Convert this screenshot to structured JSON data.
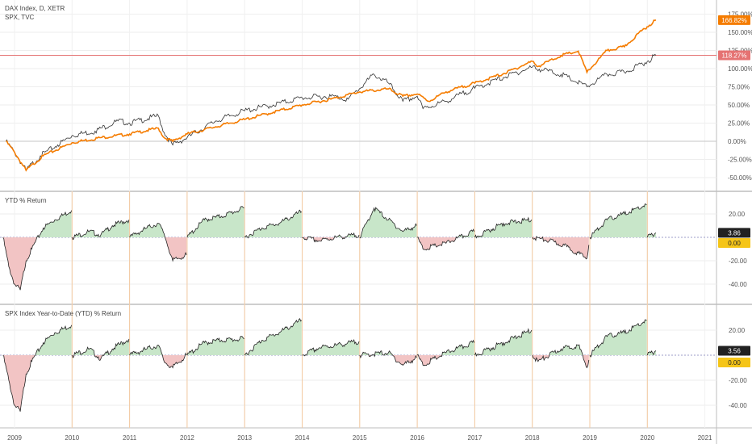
{
  "main_legend": [
    "DAX Index, D, XETR",
    "SPX, TVC"
  ],
  "main_axis": {
    "ticks": [
      "175.00%",
      "150.00%",
      "125.00%",
      "100.00%",
      "75.00%",
      "50.00%",
      "25.00%",
      "0.00%",
      "-25.00%",
      "-50.00%"
    ]
  },
  "price_tags": {
    "spx": "166.82%",
    "dax": "118.27%"
  },
  "ytd1": {
    "title": "YTD % Return",
    "tag_value": "3.86",
    "zero_tag": "0.00",
    "ticks": [
      "20.00",
      "-20.00",
      "-40.00"
    ]
  },
  "ytd2": {
    "title": "SPX Index Year-to-Date (YTD) % Return",
    "tag_value": "3.56",
    "zero_tag": "0.00",
    "ticks": [
      "20.00",
      "-20.00",
      "-40.00"
    ]
  },
  "x_axis": {
    "labels": [
      "2009",
      "2010",
      "2011",
      "2012",
      "2013",
      "2014",
      "2015",
      "2016",
      "2017",
      "2018",
      "2019",
      "2020",
      "2021"
    ]
  },
  "colors": {
    "spx": "#f57c00",
    "dax": "#333333",
    "ref_line": "#e57373",
    "pos_fill": "#c8e6c9",
    "neg_fill": "#f2c4c4",
    "zero_tag": "#f5c518"
  },
  "chart_data": [
    {
      "type": "line",
      "title": "DAX Index, D, XETR",
      "ylabel": "%",
      "ylim": [
        -60,
        180
      ],
      "series": [
        {
          "name": "DAX Index, D, XETR",
          "x": [
            2008.85,
            2009.0,
            2009.2,
            2009.45,
            2009.75,
            2010.0,
            2010.4,
            2010.8,
            2011.0,
            2011.5,
            2011.6,
            2011.75,
            2012.0,
            2012.5,
            2013.0,
            2013.5,
            2014.0,
            2014.5,
            2014.8,
            2015.25,
            2015.5,
            2015.75,
            2016.0,
            2016.1,
            2016.5,
            2017.0,
            2017.5,
            2018.0,
            2018.5,
            2018.95,
            2019.3,
            2019.6,
            2020.0,
            2020.15
          ],
          "values": [
            0,
            -15,
            -40,
            -20,
            -5,
            8,
            14,
            28,
            25,
            35,
            12,
            -5,
            5,
            28,
            42,
            50,
            60,
            62,
            58,
            92,
            80,
            55,
            62,
            45,
            55,
            73,
            88,
            102,
            92,
            75,
            92,
            95,
            110,
            118.27
          ]
        },
        {
          "name": "SPX, TVC",
          "x": [
            2008.85,
            2009.0,
            2009.2,
            2009.5,
            2010.0,
            2010.5,
            2011.0,
            2011.5,
            2011.6,
            2011.75,
            2012.0,
            2012.5,
            2013.0,
            2013.5,
            2014.0,
            2014.5,
            2015.0,
            2015.5,
            2015.75,
            2016.0,
            2016.2,
            2016.5,
            2017.0,
            2017.5,
            2018.0,
            2018.1,
            2018.5,
            2018.8,
            2018.95,
            2019.3,
            2019.6,
            2019.9,
            2020.15
          ],
          "values": [
            0,
            -15,
            -40,
            -20,
            -2,
            5,
            10,
            18,
            5,
            0,
            10,
            20,
            30,
            40,
            50,
            58,
            68,
            72,
            62,
            65,
            55,
            68,
            80,
            93,
            110,
            103,
            118,
            124,
            95,
            125,
            130,
            152,
            166.82
          ]
        }
      ]
    },
    {
      "type": "area",
      "title": "YTD % Return",
      "ylim": [
        -50,
        35
      ],
      "series": [
        {
          "name": "YTD % Return",
          "x": [
            2008.8,
            2008.9,
            2009.0,
            2009.1,
            2009.2,
            2009.3,
            2009.5,
            2009.7,
            2009.99,
            2010.0,
            2010.3,
            2010.5,
            2010.7,
            2010.99,
            2011.0,
            2011.3,
            2011.5,
            2011.6,
            2011.75,
            2011.99,
            2012.0,
            2012.3,
            2012.6,
            2012.99,
            2013.0,
            2013.3,
            2013.6,
            2013.99,
            2014.0,
            2014.3,
            2014.6,
            2014.99,
            2015.0,
            2015.25,
            2015.5,
            2015.75,
            2015.99,
            2016.0,
            2016.1,
            2016.5,
            2016.99,
            2017.0,
            2017.5,
            2017.99,
            2018.0,
            2018.3,
            2018.6,
            2018.95,
            2019.0,
            2019.3,
            2019.6,
            2019.99,
            2020.0,
            2020.15
          ],
          "values": [
            0,
            -25,
            -40,
            -45,
            -20,
            -10,
            8,
            15,
            23,
            0,
            5,
            2,
            10,
            15,
            0,
            8,
            12,
            3,
            -20,
            -15,
            0,
            15,
            18,
            25,
            0,
            8,
            12,
            22,
            0,
            -3,
            0,
            2,
            0,
            25,
            15,
            5,
            10,
            0,
            -10,
            -5,
            5,
            0,
            12,
            15,
            0,
            -3,
            -8,
            -18,
            0,
            15,
            20,
            28,
            0,
            3.86
          ]
        }
      ]
    },
    {
      "type": "area",
      "title": "SPX Index Year-to-Date (YTD) % Return",
      "ylim": [
        -50,
        35
      ],
      "series": [
        {
          "name": "SPX Index Year-to-Date (YTD) % Return",
          "x": [
            2008.8,
            2008.9,
            2009.0,
            2009.1,
            2009.2,
            2009.3,
            2009.5,
            2009.7,
            2009.99,
            2010.0,
            2010.3,
            2010.5,
            2010.7,
            2010.99,
            2011.0,
            2011.3,
            2011.5,
            2011.6,
            2011.75,
            2011.99,
            2012.0,
            2012.3,
            2012.6,
            2012.99,
            2013.0,
            2013.3,
            2013.6,
            2013.99,
            2014.0,
            2014.3,
            2014.6,
            2014.99,
            2015.0,
            2015.5,
            2015.75,
            2015.99,
            2016.0,
            2016.1,
            2016.5,
            2016.99,
            2017.0,
            2017.5,
            2017.99,
            2018.0,
            2018.1,
            2018.5,
            2018.8,
            2018.95,
            2019.0,
            2019.3,
            2019.6,
            2019.99,
            2020.0,
            2020.15
          ],
          "values": [
            0,
            -20,
            -40,
            -45,
            -15,
            -5,
            10,
            18,
            24,
            0,
            5,
            -3,
            5,
            13,
            0,
            5,
            8,
            -5,
            -10,
            0,
            0,
            10,
            12,
            13,
            0,
            12,
            18,
            28,
            0,
            6,
            8,
            11,
            0,
            2,
            -8,
            -2,
            0,
            -8,
            2,
            10,
            0,
            10,
            20,
            0,
            -5,
            5,
            8,
            -10,
            0,
            15,
            18,
            28,
            0,
            3.56
          ]
        }
      ]
    }
  ]
}
